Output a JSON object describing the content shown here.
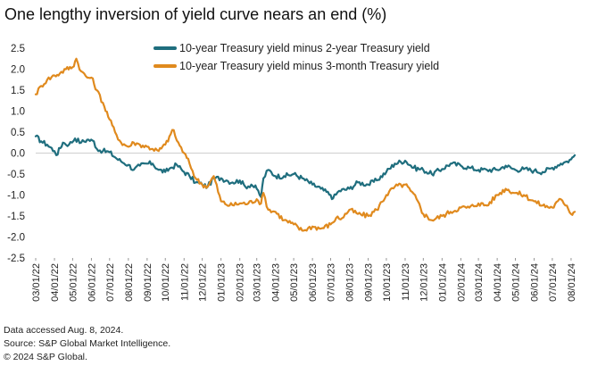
{
  "chart_data": {
    "type": "line",
    "title": "One lengthy inversion of yield curve nears an end (%)",
    "xlabel": "",
    "ylabel": "",
    "ylim": [
      -2.5,
      2.5
    ],
    "yticks": [
      "2.5",
      "2.0",
      "1.5",
      "1.0",
      "0.5",
      "0.0",
      "-0.5",
      "-1.0",
      "-1.5",
      "-2.0",
      "-2.5"
    ],
    "xticks": [
      "03/01/22",
      "04/01/22",
      "05/01/22",
      "06/01/22",
      "07/01/22",
      "08/01/22",
      "09/01/22",
      "10/01/22",
      "11/01/22",
      "12/01/22",
      "01/01/23",
      "02/01/23",
      "03/01/23",
      "04/01/23",
      "05/01/23",
      "06/01/23",
      "07/01/23",
      "08/01/23",
      "09/01/23",
      "10/01/23",
      "11/01/23",
      "12/01/23",
      "01/01/24",
      "02/01/24",
      "03/01/24",
      "04/01/24",
      "05/01/24",
      "06/01/24",
      "07/01/24",
      "08/01/24"
    ],
    "xrange": [
      "03/01/22",
      "08/07/24"
    ],
    "legend_position": "top-center",
    "grid": false,
    "series": [
      {
        "name": "10-year Treasury yield minus 2-year Treasury yield",
        "color": "#1f6e7e",
        "points": [
          [
            "03/01/22",
            0.4
          ],
          [
            "03/10/22",
            0.28
          ],
          [
            "03/20/22",
            0.2
          ],
          [
            "04/01/22",
            0.05
          ],
          [
            "04/04/22",
            -0.05
          ],
          [
            "04/15/22",
            0.25
          ],
          [
            "04/25/22",
            0.2
          ],
          [
            "05/05/22",
            0.35
          ],
          [
            "05/15/22",
            0.25
          ],
          [
            "05/25/22",
            0.32
          ],
          [
            "06/05/22",
            0.28
          ],
          [
            "06/10/22",
            0.1
          ],
          [
            "06/20/22",
            0.05
          ],
          [
            "07/01/22",
            0.02
          ],
          [
            "07/10/22",
            -0.1
          ],
          [
            "07/20/22",
            -0.2
          ],
          [
            "08/01/22",
            -0.28
          ],
          [
            "08/10/22",
            -0.4
          ],
          [
            "08/20/22",
            -0.3
          ],
          [
            "09/01/22",
            -0.25
          ],
          [
            "09/10/22",
            -0.25
          ],
          [
            "09/20/22",
            -0.4
          ],
          [
            "10/01/22",
            -0.45
          ],
          [
            "10/10/22",
            -0.35
          ],
          [
            "10/20/22",
            -0.28
          ],
          [
            "11/01/22",
            -0.45
          ],
          [
            "11/10/22",
            -0.55
          ],
          [
            "11/20/22",
            -0.7
          ],
          [
            "12/01/22",
            -0.75
          ],
          [
            "12/10/22",
            -0.8
          ],
          [
            "12/20/22",
            -0.6
          ],
          [
            "01/01/23",
            -0.6
          ],
          [
            "01/10/23",
            -0.65
          ],
          [
            "01/20/23",
            -0.7
          ],
          [
            "02/01/23",
            -0.65
          ],
          [
            "02/10/23",
            -0.8
          ],
          [
            "02/20/23",
            -0.75
          ],
          [
            "03/01/23",
            -0.85
          ],
          [
            "03/08/23",
            -1.05
          ],
          [
            "03/12/23",
            -0.6
          ],
          [
            "03/20/23",
            -0.4
          ],
          [
            "04/01/23",
            -0.55
          ],
          [
            "04/15/23",
            -0.55
          ],
          [
            "05/01/23",
            -0.5
          ],
          [
            "05/15/23",
            -0.6
          ],
          [
            "06/01/23",
            -0.75
          ],
          [
            "06/15/23",
            -0.85
          ],
          [
            "07/01/23",
            -1.0
          ],
          [
            "07/05/23",
            -1.08
          ],
          [
            "07/15/23",
            -0.9
          ],
          [
            "08/01/23",
            -0.85
          ],
          [
            "08/15/23",
            -0.7
          ],
          [
            "09/01/23",
            -0.75
          ],
          [
            "09/15/23",
            -0.65
          ],
          [
            "10/01/23",
            -0.45
          ],
          [
            "10/15/23",
            -0.25
          ],
          [
            "11/01/23",
            -0.18
          ],
          [
            "11/15/23",
            -0.35
          ],
          [
            "12/01/23",
            -0.4
          ],
          [
            "12/15/23",
            -0.5
          ],
          [
            "01/01/24",
            -0.38
          ],
          [
            "01/15/24",
            -0.25
          ],
          [
            "02/01/24",
            -0.3
          ],
          [
            "02/15/24",
            -0.35
          ],
          [
            "03/01/24",
            -0.4
          ],
          [
            "03/15/24",
            -0.4
          ],
          [
            "04/01/24",
            -0.4
          ],
          [
            "04/15/24",
            -0.3
          ],
          [
            "05/01/24",
            -0.4
          ],
          [
            "05/15/24",
            -0.38
          ],
          [
            "06/01/24",
            -0.42
          ],
          [
            "06/15/24",
            -0.45
          ],
          [
            "07/01/24",
            -0.35
          ],
          [
            "07/15/24",
            -0.25
          ],
          [
            "07/25/24",
            -0.2
          ],
          [
            "08/01/24",
            -0.15
          ],
          [
            "08/07/24",
            -0.05
          ]
        ]
      },
      {
        "name": "10-year Treasury yield minus 3-month Treasury yield",
        "color": "#e08a1e",
        "points": [
          [
            "03/01/22",
            1.4
          ],
          [
            "03/10/22",
            1.6
          ],
          [
            "03/20/22",
            1.75
          ],
          [
            "04/01/22",
            1.85
          ],
          [
            "04/10/22",
            1.9
          ],
          [
            "04/20/22",
            2.0
          ],
          [
            "05/01/22",
            2.05
          ],
          [
            "05/07/22",
            2.25
          ],
          [
            "05/15/22",
            1.95
          ],
          [
            "05/25/22",
            1.8
          ],
          [
            "06/01/22",
            1.8
          ],
          [
            "06/10/22",
            1.5
          ],
          [
            "06/20/22",
            1.2
          ],
          [
            "07/01/22",
            0.8
          ],
          [
            "07/10/22",
            0.5
          ],
          [
            "07/20/22",
            0.25
          ],
          [
            "08/01/22",
            0.15
          ],
          [
            "08/10/22",
            0.25
          ],
          [
            "08/20/22",
            0.2
          ],
          [
            "09/01/22",
            0.15
          ],
          [
            "09/10/22",
            0.1
          ],
          [
            "09/20/22",
            0.05
          ],
          [
            "10/01/22",
            0.2
          ],
          [
            "10/10/22",
            0.45
          ],
          [
            "10/15/22",
            0.55
          ],
          [
            "10/20/22",
            0.3
          ],
          [
            "11/01/22",
            0.0
          ],
          [
            "11/10/22",
            -0.25
          ],
          [
            "11/20/22",
            -0.6
          ],
          [
            "12/01/22",
            -0.75
          ],
          [
            "12/10/22",
            -0.8
          ],
          [
            "12/20/22",
            -0.55
          ],
          [
            "01/01/23",
            -1.15
          ],
          [
            "01/15/23",
            -1.25
          ],
          [
            "02/01/23",
            -1.2
          ],
          [
            "02/15/23",
            -1.2
          ],
          [
            "03/01/23",
            -1.1
          ],
          [
            "03/08/23",
            -1.2
          ],
          [
            "03/12/23",
            -0.95
          ],
          [
            "03/20/23",
            -1.35
          ],
          [
            "04/01/23",
            -1.4
          ],
          [
            "04/15/23",
            -1.6
          ],
          [
            "05/01/23",
            -1.7
          ],
          [
            "05/15/23",
            -1.85
          ],
          [
            "06/01/23",
            -1.75
          ],
          [
            "06/15/23",
            -1.8
          ],
          [
            "07/01/23",
            -1.7
          ],
          [
            "07/10/23",
            -1.55
          ],
          [
            "07/20/23",
            -1.55
          ],
          [
            "08/01/23",
            -1.35
          ],
          [
            "08/15/23",
            -1.45
          ],
          [
            "09/01/23",
            -1.5
          ],
          [
            "09/15/23",
            -1.35
          ],
          [
            "10/01/23",
            -1.0
          ],
          [
            "10/15/23",
            -0.8
          ],
          [
            "11/01/23",
            -0.75
          ],
          [
            "11/10/23",
            -0.9
          ],
          [
            "11/20/23",
            -1.1
          ],
          [
            "12/01/23",
            -1.45
          ],
          [
            "12/15/23",
            -1.6
          ],
          [
            "01/01/24",
            -1.5
          ],
          [
            "01/15/24",
            -1.4
          ],
          [
            "02/01/24",
            -1.3
          ],
          [
            "02/15/24",
            -1.3
          ],
          [
            "03/01/24",
            -1.2
          ],
          [
            "03/15/24",
            -1.25
          ],
          [
            "04/01/24",
            -1.0
          ],
          [
            "04/15/24",
            -0.85
          ],
          [
            "05/01/24",
            -0.95
          ],
          [
            "05/15/24",
            -1.0
          ],
          [
            "06/01/24",
            -1.15
          ],
          [
            "06/15/24",
            -1.25
          ],
          [
            "07/01/24",
            -1.3
          ],
          [
            "07/15/24",
            -1.1
          ],
          [
            "07/25/24",
            -1.25
          ],
          [
            "08/01/24",
            -1.45
          ],
          [
            "08/07/24",
            -1.4
          ]
        ]
      }
    ]
  },
  "footer": {
    "lines": [
      "Data accessed Aug. 8, 2024.",
      "Source: S&P Global Market Intelligence.",
      "© 2024 S&P Global."
    ]
  }
}
